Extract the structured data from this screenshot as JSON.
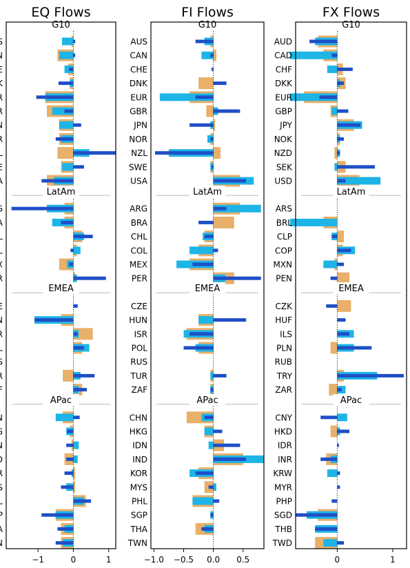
{
  "chart_data": {
    "type": "bar",
    "group_labels": [
      "G10",
      "LatAm",
      "EMEA",
      "APac"
    ],
    "tick_labels": {
      "eq": [
        "−1",
        "0",
        "1"
      ],
      "fi": [
        "−1.0",
        "−0.5",
        "0.0",
        "0.5"
      ],
      "fx": [
        "0",
        "1"
      ]
    },
    "colors": {
      "wide_bar": "#e8b06a",
      "mid_bar": "#1eb4e6",
      "thin_bar": "#1f4fc6",
      "separator": "#bbbbbb"
    },
    "panels": [
      {
        "key": "eq",
        "title": "EQ Flows",
        "xlim": [
          -1.9,
          1.2
        ],
        "ticks": [
          -1,
          0,
          1
        ],
        "rows": [
          [
            "AUS",
            -0.05,
            -0.32,
            0.05
          ],
          [
            "CAN",
            -0.45,
            -0.4,
            0.05
          ],
          [
            "CHE",
            -0.15,
            -0.25,
            -0.12
          ],
          [
            "DNK",
            -0.1,
            -0.1,
            -0.42
          ],
          [
            "EUR",
            -0.8,
            -0.78,
            -1.05
          ],
          [
            "GBR",
            -0.75,
            -0.6,
            -0.25
          ],
          [
            "JPN",
            -0.4,
            -0.4,
            0.22
          ],
          [
            "NOR",
            -0.4,
            -0.35,
            -0.5
          ],
          [
            "NZL",
            -0.45,
            0.45,
            1.2
          ],
          [
            "SWE",
            -0.35,
            -0.32,
            0.3
          ],
          [
            "USA",
            -0.75,
            -0.55,
            -0.9
          ],
          [
            "ARG",
            -0.25,
            -0.75,
            -1.75
          ],
          [
            "BRA",
            -0.25,
            -0.6,
            -0.35
          ],
          [
            "CHL",
            0.25,
            0.3,
            0.55
          ],
          [
            "COL",
            0.1,
            0.2,
            -0.08
          ],
          [
            "MEX",
            -0.4,
            -0.18,
            -0.12
          ],
          [
            "PER",
            0.05,
            0.1,
            0.92
          ],
          [
            "CZE",
            0.0,
            0.0,
            0.12
          ],
          [
            "HUN",
            -0.35,
            -1.1,
            -1.1
          ],
          [
            "ISR",
            0.55,
            0.15,
            0.12
          ],
          [
            "POL",
            0.25,
            0.45,
            0.3
          ],
          [
            "RUS",
            0.0,
            0.0,
            0.0
          ],
          [
            "TUR",
            -0.3,
            0.2,
            0.6
          ],
          [
            "ZAF",
            0.25,
            0.15,
            0.38
          ],
          [
            "CHN",
            -0.3,
            -0.5,
            0.18
          ],
          [
            "HKG",
            -0.1,
            -0.2,
            -0.18
          ],
          [
            "IDN",
            -0.05,
            0.15,
            -0.2
          ],
          [
            "IND",
            -0.25,
            0.12,
            -0.2
          ],
          [
            "KOR",
            0.05,
            -0.05,
            -0.25
          ],
          [
            "MYS",
            0.05,
            -0.2,
            -0.35
          ],
          [
            "PHL",
            0.35,
            0.3,
            0.5
          ],
          [
            "SGP",
            -0.5,
            -0.5,
            -0.9
          ],
          [
            "THA",
            -0.35,
            -0.25,
            -0.45
          ],
          [
            "TWN",
            -0.35,
            -0.3,
            -0.5
          ]
        ]
      },
      {
        "key": "fi",
        "title": "FI Flows",
        "xlim": [
          -1.05,
          0.85
        ],
        "ticks": [
          -1.0,
          -0.5,
          0.0,
          0.5
        ],
        "rows": [
          [
            "AUS",
            -0.05,
            -0.15,
            -0.3
          ],
          [
            "CAN",
            0.05,
            -0.2,
            -0.05
          ],
          [
            "CHE",
            0.0,
            0.0,
            -0.03
          ],
          [
            "DNK",
            -0.25,
            0.0,
            0.22
          ],
          [
            "EUR",
            -0.4,
            -0.9,
            -0.3
          ],
          [
            "GBR",
            -0.12,
            0.08,
            0.45
          ],
          [
            "JPN",
            0.03,
            -0.05,
            -0.4
          ],
          [
            "NOR",
            -0.05,
            -0.1,
            -0.05
          ],
          [
            "NZL",
            0.12,
            -0.75,
            -0.98
          ],
          [
            "SWE",
            -0.05,
            -0.05,
            -0.03
          ],
          [
            "USA",
            0.45,
            0.68,
            0.55
          ],
          [
            "ARG",
            0.45,
            0.8,
            0.22
          ],
          [
            "BRA",
            0.35,
            0.0,
            -0.25
          ],
          [
            "CHL",
            -0.15,
            -0.18,
            -0.15
          ],
          [
            "COL",
            -0.25,
            -0.4,
            0.08
          ],
          [
            "MEX",
            -0.4,
            -0.62,
            -0.35
          ],
          [
            "PER",
            0.35,
            0.2,
            0.8
          ],
          [
            "CZE",
            0.0,
            0.0,
            0.0
          ],
          [
            "HUN",
            -0.25,
            -0.25,
            0.55
          ],
          [
            "ISR",
            -0.45,
            -0.5,
            -0.4
          ],
          [
            "POL",
            -0.25,
            -0.3,
            -0.5
          ],
          [
            "RUS",
            0.0,
            0.0,
            0.0
          ],
          [
            "TUR",
            -0.05,
            -0.05,
            0.22
          ],
          [
            "ZAF",
            -0.05,
            -0.05,
            -0.05
          ],
          [
            "CHN",
            -0.45,
            -0.2,
            -0.15
          ],
          [
            "HKG",
            -0.15,
            -0.15,
            0.15
          ],
          [
            "IDN",
            0.18,
            -0.08,
            0.45
          ],
          [
            "IND",
            0.5,
            0.85,
            0.55
          ],
          [
            "KOR",
            -0.25,
            -0.4,
            -0.3
          ],
          [
            "MYS",
            -0.15,
            0.05,
            -0.08
          ],
          [
            "PHL",
            -0.35,
            -0.35,
            0.1
          ],
          [
            "SGP",
            0.0,
            -0.05,
            -0.05
          ],
          [
            "THA",
            -0.3,
            -0.15,
            -0.2
          ],
          [
            "TWN",
            0.0,
            0.0,
            0.0
          ]
        ]
      },
      {
        "key": "fx",
        "title": "FX Flows",
        "xlim": [
          -0.75,
          1.25
        ],
        "ticks": [
          0,
          1
        ],
        "rows": [
          [
            "AUD",
            -0.35,
            -0.4,
            -0.5
          ],
          [
            "CAD",
            -0.25,
            -0.85,
            -0.1
          ],
          [
            "CHF",
            0.1,
            -0.18,
            0.28
          ],
          [
            "DKK",
            0.15,
            0.05,
            0.12
          ],
          [
            "EUR",
            -0.6,
            -0.85,
            -0.32
          ],
          [
            "GBP",
            -0.12,
            -0.1,
            0.2
          ],
          [
            "JPY",
            0.3,
            0.45,
            0.42
          ],
          [
            "NOK",
            0.05,
            0.05,
            0.12
          ],
          [
            "NZD",
            -0.05,
            0.05,
            0.05
          ],
          [
            "SEK",
            0.15,
            -0.05,
            0.68
          ],
          [
            "USD",
            0.4,
            0.78,
            0.15
          ],
          [
            "ARS",
            0.0,
            0.0,
            0.0
          ],
          [
            "BRL",
            -0.25,
            -0.85,
            0.0
          ],
          [
            "CLP",
            0.12,
            -0.1,
            -0.1
          ],
          [
            "COP",
            0.1,
            0.32,
            0.25
          ],
          [
            "MXN",
            -0.05,
            -0.25,
            0.12
          ],
          [
            "PEN",
            0.22,
            0.0,
            -0.12
          ],
          [
            "CZK",
            0.25,
            0.0,
            -0.2
          ],
          [
            "HUF",
            0.0,
            0.0,
            0.15
          ],
          [
            "ILS",
            0.0,
            0.3,
            0.22
          ],
          [
            "PLN",
            -0.12,
            0.3,
            0.62
          ],
          [
            "RUB",
            0.0,
            0.0,
            0.0
          ],
          [
            "TRY",
            0.12,
            0.72,
            1.2
          ],
          [
            "ZAR",
            -0.15,
            0.15,
            0.08
          ],
          [
            "CNY",
            0.0,
            0.18,
            -0.3
          ],
          [
            "HKD",
            -0.12,
            0.05,
            0.22
          ],
          [
            "IDR",
            0.0,
            0.0,
            0.03
          ],
          [
            "INR",
            -0.2,
            -0.12,
            -0.3
          ],
          [
            "KRW",
            0.0,
            -0.18,
            0.05
          ],
          [
            "MYR",
            0.0,
            0.0,
            0.05
          ],
          [
            "PHP",
            0.0,
            0.0,
            -0.1
          ],
          [
            "SGD",
            -0.35,
            -0.55,
            -0.75
          ],
          [
            "THB",
            0.0,
            -0.4,
            -0.4
          ],
          [
            "TWD",
            -0.4,
            -0.25,
            0.12
          ]
        ]
      }
    ]
  }
}
